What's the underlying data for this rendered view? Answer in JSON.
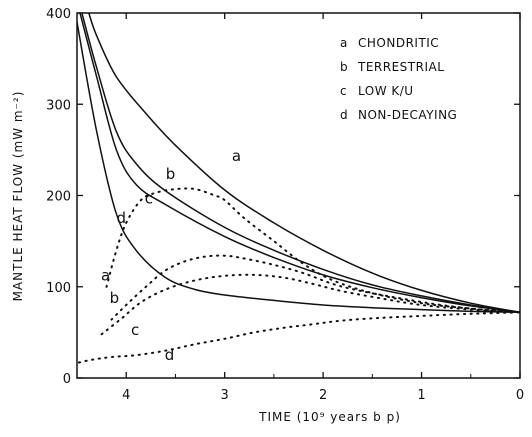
{
  "chart_data": {
    "type": "line",
    "xlabel": "TIME (10⁹ years b p)",
    "ylabel": "MANTLE HEAT FLOW (mW m⁻²)",
    "xlim": [
      4.5,
      0
    ],
    "ylim": [
      0,
      400
    ],
    "x_reversed": true,
    "x_ticks": [
      "4",
      "3",
      "2",
      "1",
      "0"
    ],
    "y_ticks": [
      "0",
      "100",
      "200",
      "300",
      "400"
    ],
    "legend_position": "top-right",
    "legend": [
      {
        "key": "a",
        "label": "CHONDRITIC"
      },
      {
        "key": "b",
        "label": "TERRESTRIAL"
      },
      {
        "key": "c",
        "label": "LOW K/U"
      },
      {
        "key": "d",
        "label": "NON-DECAYING"
      }
    ],
    "series": [
      {
        "key": "a",
        "style": "solid",
        "points": [
          [
            4.38,
            400
          ],
          [
            4.3,
            375
          ],
          [
            4.1,
            330
          ],
          [
            3.8,
            290
          ],
          [
            3.5,
            255
          ],
          [
            3.0,
            206
          ],
          [
            2.5,
            170
          ],
          [
            2.0,
            140
          ],
          [
            1.5,
            115
          ],
          [
            1.0,
            96
          ],
          [
            0.5,
            82
          ],
          [
            0,
            72
          ]
        ]
      },
      {
        "key": "b",
        "style": "solid",
        "points": [
          [
            4.45,
            400
          ],
          [
            4.3,
            340
          ],
          [
            4.1,
            270
          ],
          [
            3.9,
            235
          ],
          [
            3.6,
            205
          ],
          [
            3.0,
            165
          ],
          [
            2.5,
            140
          ],
          [
            2.0,
            119
          ],
          [
            1.5,
            102
          ],
          [
            1.0,
            90
          ],
          [
            0.5,
            80
          ],
          [
            0,
            72
          ]
        ]
      },
      {
        "key": "c",
        "style": "solid",
        "points": [
          [
            4.47,
            400
          ],
          [
            4.3,
            330
          ],
          [
            4.1,
            250
          ],
          [
            3.9,
            212
          ],
          [
            3.6,
            190
          ],
          [
            3.0,
            155
          ],
          [
            2.5,
            132
          ],
          [
            2.0,
            113
          ],
          [
            1.5,
            99
          ],
          [
            1.0,
            88
          ],
          [
            0.5,
            79
          ],
          [
            0,
            72
          ]
        ]
      },
      {
        "key": "d",
        "style": "solid",
        "points": [
          [
            4.5,
            390
          ],
          [
            4.3,
            270
          ],
          [
            4.1,
            180
          ],
          [
            3.9,
            140
          ],
          [
            3.6,
            110
          ],
          [
            3.3,
            97
          ],
          [
            3.0,
            91
          ],
          [
            2.5,
            85
          ],
          [
            2.0,
            80
          ],
          [
            1.5,
            77
          ],
          [
            1.0,
            75
          ],
          [
            0.5,
            73
          ],
          [
            0,
            72
          ]
        ]
      },
      {
        "key": "a",
        "style": "dotted",
        "points": [
          [
            4.2,
            100
          ],
          [
            4.1,
            140
          ],
          [
            4.0,
            170
          ],
          [
            3.85,
            195
          ],
          [
            3.7,
            203
          ],
          [
            3.5,
            207
          ],
          [
            3.3,
            207
          ],
          [
            3.1,
            200
          ],
          [
            3.0,
            195
          ],
          [
            2.8,
            175
          ],
          [
            2.5,
            150
          ],
          [
            2.2,
            125
          ],
          [
            1.9,
            107
          ],
          [
            1.5,
            93
          ],
          [
            1.0,
            82
          ],
          [
            0.5,
            76
          ],
          [
            0,
            72
          ]
        ]
      },
      {
        "key": "b",
        "style": "dotted",
        "points": [
          [
            4.15,
            64
          ],
          [
            4.0,
            80
          ],
          [
            3.8,
            100
          ],
          [
            3.6,
            118
          ],
          [
            3.4,
            128
          ],
          [
            3.2,
            133
          ],
          [
            3.0,
            134
          ],
          [
            2.8,
            131
          ],
          [
            2.5,
            124
          ],
          [
            2.2,
            115
          ],
          [
            1.9,
            103
          ],
          [
            1.6,
            95
          ],
          [
            1.2,
            87
          ],
          [
            0.8,
            80
          ],
          [
            0.4,
            75
          ],
          [
            0,
            72
          ]
        ]
      },
      {
        "key": "c",
        "style": "dotted",
        "points": [
          [
            4.25,
            48
          ],
          [
            4.05,
            65
          ],
          [
            3.85,
            83
          ],
          [
            3.6,
            97
          ],
          [
            3.3,
            107
          ],
          [
            3.0,
            112
          ],
          [
            2.7,
            113
          ],
          [
            2.4,
            110
          ],
          [
            2.1,
            103
          ],
          [
            1.8,
            95
          ],
          [
            1.4,
            87
          ],
          [
            1.0,
            80
          ],
          [
            0.5,
            75
          ],
          [
            0,
            72
          ]
        ]
      },
      {
        "key": "d",
        "style": "dotted",
        "points": [
          [
            4.48,
            17
          ],
          [
            4.35,
            20
          ],
          [
            4.15,
            23
          ],
          [
            3.9,
            25
          ],
          [
            3.6,
            30
          ],
          [
            3.3,
            37
          ],
          [
            3.0,
            43
          ],
          [
            2.7,
            50
          ],
          [
            2.4,
            55
          ],
          [
            2.1,
            59
          ],
          [
            1.8,
            63
          ],
          [
            1.4,
            66
          ],
          [
            1.0,
            68
          ],
          [
            0.6,
            70
          ],
          [
            0.3,
            71
          ],
          [
            0,
            72
          ]
        ]
      }
    ],
    "curve_labels": [
      {
        "text": "a",
        "x": 2.88,
        "y": 238
      },
      {
        "text": "b",
        "x": 3.55,
        "y": 218
      },
      {
        "text": "c",
        "x": 3.77,
        "y": 191
      },
      {
        "text": "d",
        "x": 4.05,
        "y": 170
      },
      {
        "text": "a",
        "x": 4.21,
        "y": 107
      },
      {
        "text": "b",
        "x": 4.12,
        "y": 82
      },
      {
        "text": "c",
        "x": 3.91,
        "y": 47
      },
      {
        "text": "d",
        "x": 3.56,
        "y": 20
      }
    ]
  }
}
